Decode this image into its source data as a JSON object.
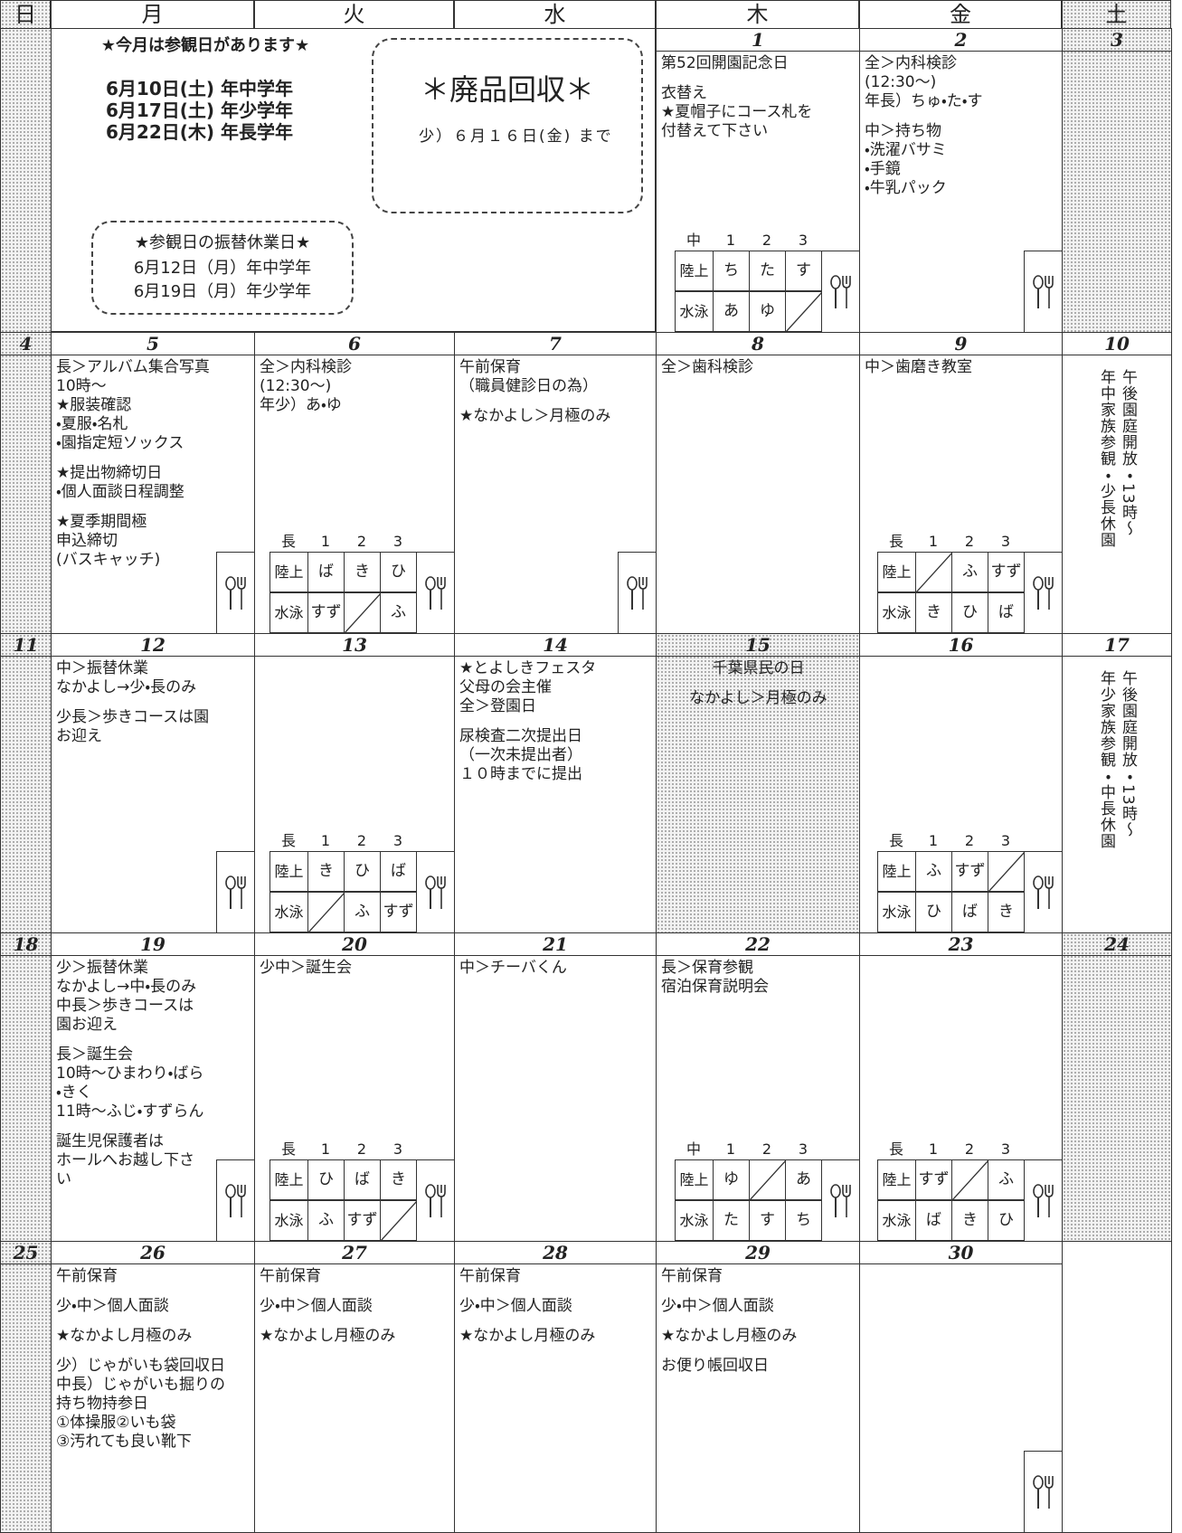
{
  "weekdays": [
    "日",
    "月",
    "火",
    "水",
    "木",
    "金",
    "土"
  ],
  "notice": {
    "title": "★今月は参観日があります★",
    "dates": [
      "6月10日(土) 年中学年",
      "6月17日(土) 年少学年",
      "6月22日(木) 年長学年"
    ],
    "substitute_title": "★参観日の振替休業日★",
    "substitute": [
      "6月12日（月）年中学年",
      "6月19日（月）年少学年"
    ]
  },
  "recycle": {
    "title": "＊廃品回収＊",
    "text": "少）６月１６日(金) まで"
  },
  "weeks": [
    {
      "days": [
        {
          "holiday": true
        },
        {},
        {},
        {},
        {
          "date": "1",
          "blocks": [
            [
              "第52回開園記念日"
            ],
            [
              "衣替え",
              "★夏帽子にコース札を",
              "付替えて下さい"
            ]
          ],
          "schedule": {
            "grade": "中",
            "cols": [
              "1",
              "2",
              "3"
            ],
            "rows": [
              {
                "label": "陸上",
                "cells": [
                  "ち",
                  "た",
                  "す"
                ]
              },
              {
                "label": "水泳",
                "cells": [
                  "あ",
                  "ゆ",
                  null
                ]
              }
            ]
          },
          "fork": true
        },
        {
          "date": "2",
          "blocks": [
            [
              "全＞内科検診",
              "(12:30〜)",
              "年長）ちゅ・た・す"
            ],
            [
              "中＞持ち物",
              "・洗濯バサミ",
              "・手鏡",
              "・牛乳パック"
            ]
          ],
          "fork": true
        },
        {
          "date": "3",
          "holiday": true
        }
      ]
    },
    {
      "days": [
        {
          "date": "4",
          "holiday": true
        },
        {
          "date": "5",
          "blocks": [
            [
              "長＞アルバム集合写真",
              "10時〜",
              "★服装確認",
              "・夏服・名札",
              "・園指定短ソックス"
            ],
            [
              "★提出物締切日",
              "・個人面談日程調整"
            ],
            [
              "★夏季期間極",
              "申込締切",
              "(バスキャッチ)"
            ]
          ],
          "fork": true
        },
        {
          "date": "6",
          "blocks": [
            [
              "全＞内科検診",
              "(12:30〜)",
              "年少）あ・ゆ"
            ]
          ],
          "schedule": {
            "grade": "長",
            "cols": [
              "1",
              "2",
              "3"
            ],
            "rows": [
              {
                "label": "陸上",
                "cells": [
                  "ば",
                  "き",
                  "ひ"
                ]
              },
              {
                "label": "水泳",
                "cells": [
                  "すず",
                  null,
                  "ふ"
                ]
              }
            ]
          },
          "fork": true
        },
        {
          "date": "7",
          "blocks": [
            [
              "午前保育",
              "（職員健診日の為）"
            ],
            [
              "★なかよし＞月極のみ"
            ]
          ],
          "fork": true
        },
        {
          "date": "8",
          "blocks": [
            [
              "全＞歯科検診"
            ]
          ]
        },
        {
          "date": "9",
          "blocks": [
            [
              "中＞歯磨き教室"
            ]
          ],
          "schedule": {
            "grade": "長",
            "cols": [
              "1",
              "2",
              "3"
            ],
            "rows": [
              {
                "label": "陸上",
                "cells": [
                  null,
                  "ふ",
                  "すず"
                ]
              },
              {
                "label": "水泳",
                "cells": [
                  "き",
                  "ひ",
                  "ば"
                ]
              }
            ]
          },
          "fork": true
        },
        {
          "date": "10",
          "vertical": [
            "年中家族参観・少長休園",
            "午後園庭開放・13時〜"
          ]
        }
      ]
    },
    {
      "days": [
        {
          "date": "11",
          "holiday": true
        },
        {
          "date": "12",
          "blocks": [
            [
              "中＞振替休業",
              "なかよし→少・長のみ"
            ],
            [
              "少長＞歩きコースは園",
              "お迎え"
            ]
          ],
          "fork": true
        },
        {
          "date": "13",
          "schedule": {
            "grade": "長",
            "cols": [
              "1",
              "2",
              "3"
            ],
            "rows": [
              {
                "label": "陸上",
                "cells": [
                  "き",
                  "ひ",
                  "ば"
                ]
              },
              {
                "label": "水泳",
                "cells": [
                  null,
                  "ふ",
                  "すず"
                ]
              }
            ]
          },
          "fork": true
        },
        {
          "date": "14",
          "blocks": [
            [
              "★とよしきフェスタ",
              "父母の会主催",
              "全＞登園日"
            ],
            [
              "尿検査二次提出日",
              "（一次未提出者）",
              "１０時までに提出"
            ]
          ]
        },
        {
          "date": "15",
          "holiday": true,
          "blocks": [
            [
              "千葉県民の日"
            ],
            [
              "なかよし＞月極のみ"
            ]
          ]
        },
        {
          "date": "16",
          "schedule": {
            "grade": "長",
            "cols": [
              "1",
              "2",
              "3"
            ],
            "rows": [
              {
                "label": "陸上",
                "cells": [
                  "ふ",
                  "すず",
                  null
                ]
              },
              {
                "label": "水泳",
                "cells": [
                  "ひ",
                  "ば",
                  "き"
                ]
              }
            ]
          },
          "fork": true
        },
        {
          "date": "17",
          "vertical": [
            "年少家族参観・中長休園",
            "午後園庭開放・13時〜"
          ]
        }
      ]
    },
    {
      "days": [
        {
          "date": "18",
          "holiday": true
        },
        {
          "date": "19",
          "blocks": [
            [
              "少＞振替休業",
              "なかよし→中・長のみ",
              "中長＞歩きコースは",
              "園お迎え"
            ],
            [
              "長＞誕生会",
              "10時〜ひまわり・ばら",
              "・きく",
              "11時〜ふじ・すずらん"
            ],
            [
              "誕生児保護者は",
              "ホールへお越し下さ",
              "い"
            ]
          ],
          "fork": true
        },
        {
          "date": "20",
          "blocks": [
            [
              "少中＞誕生会"
            ]
          ],
          "schedule": {
            "grade": "長",
            "cols": [
              "1",
              "2",
              "3"
            ],
            "rows": [
              {
                "label": "陸上",
                "cells": [
                  "ひ",
                  "ば",
                  "き"
                ]
              },
              {
                "label": "水泳",
                "cells": [
                  "ふ",
                  "すず",
                  null
                ]
              }
            ]
          },
          "fork": true
        },
        {
          "date": "21",
          "blocks": [
            [
              "中＞チーバくん"
            ]
          ]
        },
        {
          "date": "22",
          "blocks": [
            [
              "長＞保育参観",
              "宿泊保育説明会"
            ]
          ],
          "schedule": {
            "grade": "中",
            "cols": [
              "1",
              "2",
              "3"
            ],
            "rows": [
              {
                "label": "陸上",
                "cells": [
                  "ゆ",
                  null,
                  "あ"
                ]
              },
              {
                "label": "水泳",
                "cells": [
                  "た",
                  "す",
                  "ち"
                ]
              }
            ]
          },
          "fork": true
        },
        {
          "date": "23",
          "schedule": {
            "grade": "長",
            "cols": [
              "1",
              "2",
              "3"
            ],
            "rows": [
              {
                "label": "陸上",
                "cells": [
                  "すず",
                  null,
                  "ふ"
                ]
              },
              {
                "label": "水泳",
                "cells": [
                  "ば",
                  "き",
                  "ひ"
                ]
              }
            ]
          },
          "fork": true
        },
        {
          "date": "24",
          "holiday": true
        }
      ]
    },
    {
      "days": [
        {
          "date": "25",
          "holiday": true
        },
        {
          "date": "26",
          "blocks": [
            [
              "午前保育"
            ],
            [
              "少・中＞個人面談"
            ],
            [
              "★なかよし月極のみ"
            ],
            [
              "少）じゃがいも袋回収日",
              "中長）じゃがいも掘りの",
              "持ち物持参日",
              "①体操服②いも袋",
              "③汚れても良い靴下"
            ]
          ]
        },
        {
          "date": "27",
          "blocks": [
            [
              "午前保育"
            ],
            [
              "少・中＞個人面談"
            ],
            [
              "★なかよし月極のみ"
            ]
          ]
        },
        {
          "date": "28",
          "blocks": [
            [
              "午前保育"
            ],
            [
              "少・中＞個人面談"
            ],
            [
              "★なかよし月極のみ"
            ]
          ]
        },
        {
          "date": "29",
          "blocks": [
            [
              "午前保育"
            ],
            [
              "少・中＞個人面談"
            ],
            [
              "★なかよし月極のみ"
            ],
            [
              "お便り帳回収日"
            ]
          ]
        },
        {
          "date": "30",
          "fork": true
        },
        {}
      ]
    }
  ]
}
